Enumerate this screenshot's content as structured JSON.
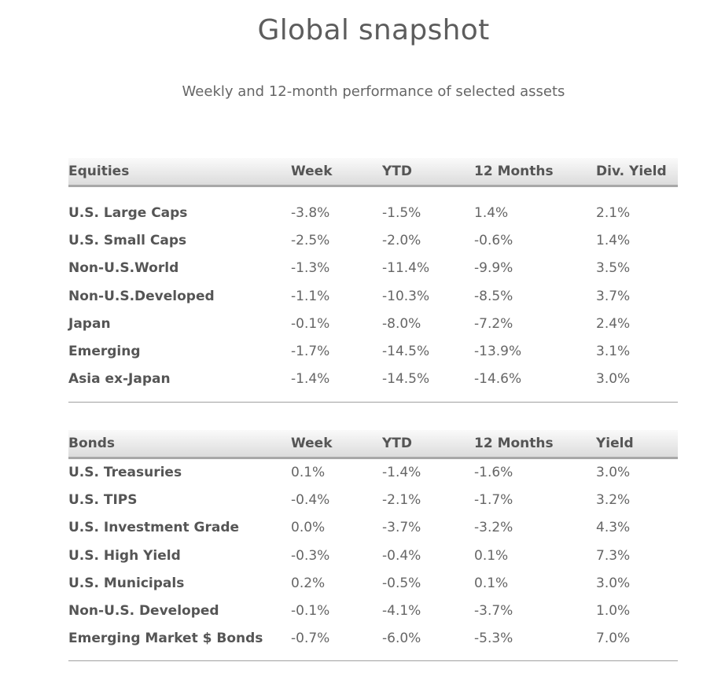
{
  "title": "Global snapshot",
  "subtitle": "Weekly and 12-month performance of selected assets",
  "equities": {
    "headers": [
      "Equities",
      "Week",
      "YTD",
      "12 Months",
      "Div. Yield"
    ],
    "rows": [
      [
        "U.S. Large Caps",
        "-3.8%",
        "-1.5%",
        "1.4%",
        "2.1%"
      ],
      [
        "U.S. Small Caps",
        "-2.5%",
        "-2.0%",
        "-0.6%",
        "1.4%"
      ],
      [
        "Non-U.S.World",
        "-1.3%",
        "-11.4%",
        "-9.9%",
        "3.5%"
      ],
      [
        "Non-U.S.Developed",
        "-1.1%",
        "-10.3%",
        "-8.5%",
        "3.7%"
      ],
      [
        "Japan",
        "-0.1%",
        "-8.0%",
        "-7.2%",
        "2.4%"
      ],
      [
        "Emerging",
        "-1.7%",
        "-14.5%",
        "-13.9%",
        "3.1%"
      ],
      [
        "Asia ex-Japan",
        "-1.4%",
        "-14.5%",
        "-14.6%",
        "3.0%"
      ]
    ]
  },
  "bonds": {
    "headers": [
      "Bonds",
      "Week",
      "YTD",
      "12 Months",
      "Yield"
    ],
    "rows": [
      [
        "U.S. Treasuries",
        "0.1%",
        "-1.4%",
        "-1.6%",
        "3.0%"
      ],
      [
        "U.S. TIPS",
        "-0.4%",
        "-2.1%",
        "-1.7%",
        "3.2%"
      ],
      [
        "U.S. Investment Grade",
        "0.0%",
        "-3.7%",
        "-3.2%",
        "4.3%"
      ],
      [
        "U.S. High Yield",
        "-0.3%",
        "-0.4%",
        "0.1%",
        "7.3%"
      ],
      [
        "U.S. Municipals",
        "0.2%",
        "-0.5%",
        "0.1%",
        "3.0%"
      ],
      [
        "Non-U.S. Developed",
        "-0.1%",
        "-4.1%",
        "-3.7%",
        "1.0%"
      ],
      [
        "Emerging Market $ Bonds",
        "-0.7%",
        "-6.0%",
        "-5.3%",
        "7.0%"
      ]
    ]
  }
}
